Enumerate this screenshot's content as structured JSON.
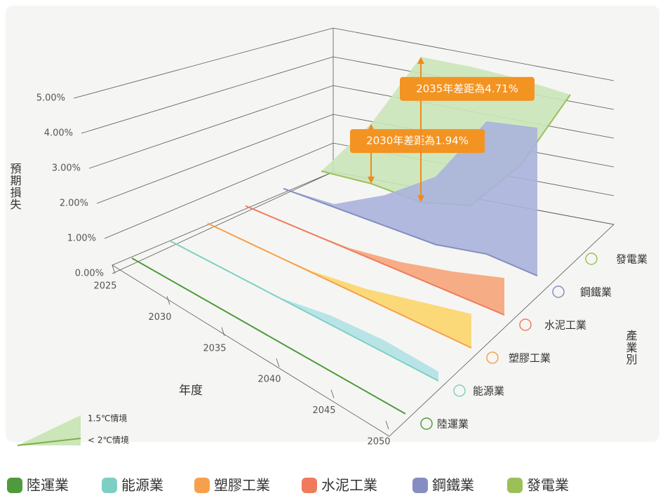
{
  "chart_data": {
    "type": "3d-area",
    "y_label": "預期損失",
    "x_label": "年度",
    "z_label": "產業別",
    "xlim": [
      2025,
      2050
    ],
    "xticks": [
      2025,
      2030,
      2035,
      2040,
      2045,
      2050
    ],
    "x": [
      2025,
      2030,
      2035,
      2040,
      2045,
      2050
    ],
    "ylim": [
      0,
      5
    ],
    "yticks": [
      {
        "value": 0,
        "label": "0.00%"
      },
      {
        "value": 1,
        "label": "1.00%"
      },
      {
        "value": 2,
        "label": "2.00%"
      },
      {
        "value": 3,
        "label": "3.00%"
      },
      {
        "value": 4,
        "label": "4.00%"
      },
      {
        "value": 5,
        "label": "5.00%"
      }
    ],
    "scenarios": [
      "1.5℃情境",
      "< 2℃情境"
    ],
    "series": [
      {
        "name": "陸運業",
        "color": "#4f9a3c",
        "fill": "#a7d08f",
        "values": [
          0,
          0,
          0,
          0,
          0,
          0
        ],
        "values_1_5c": [
          0,
          0,
          0,
          0,
          0,
          0
        ]
      },
      {
        "name": "能源業",
        "color": "#7dcfc4",
        "fill": "#b3e2e6",
        "values": [
          0,
          0,
          0,
          0,
          0,
          0
        ],
        "values_1_5c": [
          0,
          0,
          0,
          0.3,
          0.4,
          0.3
        ]
      },
      {
        "name": "塑膠工業",
        "color": "#f6a04b",
        "fill": "#fcd66c",
        "values": [
          0,
          0,
          0,
          0,
          0,
          0
        ],
        "values_1_5c": [
          0,
          0,
          0.05,
          0.3,
          0.7,
          1.1
        ]
      },
      {
        "name": "水泥工業",
        "color": "#ef7b5c",
        "fill": "#f6a57a",
        "values": [
          0,
          0,
          0,
          0,
          0,
          0
        ],
        "values_1_5c": [
          0,
          0,
          0.05,
          0.3,
          0.7,
          1.2
        ]
      },
      {
        "name": "鋼鐵業",
        "color": "#858dc2",
        "fill": "#aab2dc",
        "values": [
          0,
          0,
          0,
          0,
          0.3,
          0.2
        ],
        "values_1_5c": [
          0,
          0.1,
          1.0,
          2.2,
          4.6,
          5.0
        ]
      },
      {
        "name": "發電業",
        "color": "#9cc058",
        "fill": "#cbe6b9",
        "values": [
          0,
          0.1,
          0,
          0.4,
          2.2,
          5.0
        ],
        "values_1_5c": [
          0,
          2.04,
          4.71,
          4.9,
          5.0,
          5.0
        ]
      }
    ],
    "annotations": [
      {
        "text": "2030年差距為1.94%",
        "x": 2030,
        "series": 5
      },
      {
        "text": "2035年差距為4.71%",
        "x": 2035,
        "series": 5
      }
    ]
  }
}
